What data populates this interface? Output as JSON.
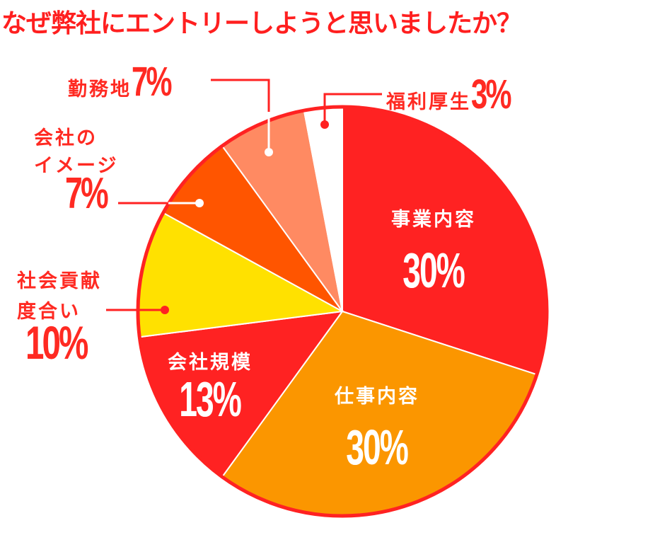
{
  "title": "なぜ弊社にエントリーしようと思いましたか？",
  "colors": {
    "accent": "#ff2222",
    "business": "#ff2222",
    "work": "#fb9600",
    "scale": "#ff2222",
    "contribution": "#ffe100",
    "image": "#ff5500",
    "location": "#ff8a62",
    "welfare": "#ffffff"
  },
  "labels": {
    "business": {
      "name": "事業内容",
      "pct": "30%"
    },
    "work": {
      "name": "仕事内容",
      "pct": "30%"
    },
    "scale": {
      "name": "会社規模",
      "pct": "13%"
    },
    "contribution": {
      "line1": "社会貢献",
      "line2": "度合い",
      "pct": "10%"
    },
    "image": {
      "line1": "会社の",
      "line2": "イメージ",
      "pct": "7%"
    },
    "location": {
      "name": "勤務地",
      "pct": "7%"
    },
    "welfare": {
      "name": "福利厚生",
      "pct": "3%"
    }
  },
  "chart_data": {
    "type": "pie",
    "title": "なぜ弊社にエントリーしようと思いましたか？",
    "categories": [
      "事業内容",
      "仕事内容",
      "会社規模",
      "社会貢献度合い",
      "会社のイメージ",
      "勤務地",
      "福利厚生"
    ],
    "values": [
      30,
      30,
      13,
      10,
      7,
      7,
      3
    ],
    "unit": "%",
    "start_angle": "12 o'clock, clockwise",
    "colors": [
      "#ff2222",
      "#fb9600",
      "#ff2222",
      "#ffe100",
      "#ff5500",
      "#ff8a62",
      "#ffffff"
    ],
    "legend": "none (callout labels)"
  }
}
